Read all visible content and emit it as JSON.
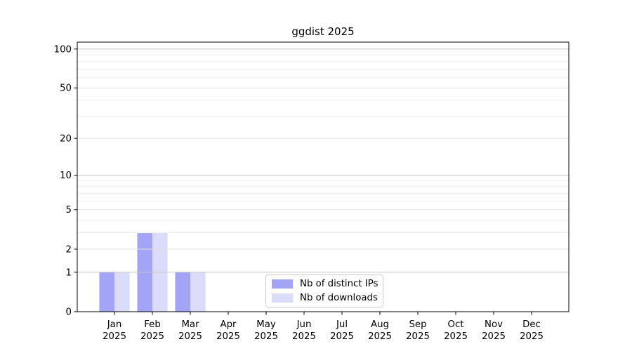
{
  "title": "ggdist 2025",
  "legend": {
    "items": [
      {
        "label": "Nb of distinct IPs",
        "color": "#a4a4f6"
      },
      {
        "label": "Nb of downloads",
        "color": "#dbdbfa"
      }
    ]
  },
  "chart_data": {
    "type": "bar",
    "title": "ggdist 2025",
    "categories": [
      "Jan 2025",
      "Feb 2025",
      "Mar 2025",
      "Apr 2025",
      "May 2025",
      "Jun 2025",
      "Jul 2025",
      "Aug 2025",
      "Sep 2025",
      "Oct 2025",
      "Nov 2025",
      "Dec 2025"
    ],
    "series": [
      {
        "name": "Nb of distinct IPs",
        "color": "#a4a4f6",
        "values": [
          1,
          3,
          1,
          0,
          0,
          0,
          0,
          0,
          0,
          0,
          0,
          0
        ]
      },
      {
        "name": "Nb of downloads",
        "color": "#dbdbfa",
        "values": [
          1,
          3,
          1,
          0,
          0,
          0,
          0,
          0,
          0,
          0,
          0,
          0
        ]
      }
    ],
    "xlabel": "",
    "ylabel": "",
    "yscale": "log1p",
    "ylim": [
      0,
      113
    ],
    "yticks": [
      0,
      1,
      2,
      5,
      10,
      20,
      50,
      100
    ],
    "ytick_minor": [
      3,
      4,
      6,
      7,
      8,
      9,
      30,
      40,
      60,
      70,
      80,
      90
    ],
    "grid": "horizontal",
    "legend_position": "lower center, inside plot",
    "colors": {
      "grid_decade": "#c6c6c6",
      "grid_labeled": "#e2e2e2",
      "grid_minor": "#ededed",
      "axis": "#000000",
      "tick_label": "#000000"
    }
  }
}
